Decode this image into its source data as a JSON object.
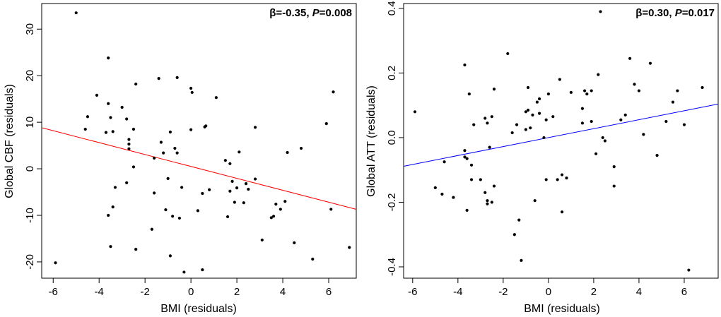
{
  "chart_data": [
    {
      "type": "scatter",
      "xlabel": "BMI (residuals)",
      "ylabel": "Global CBF (residuals)",
      "xlim": [
        -6.5,
        7.2
      ],
      "ylim": [
        -23.5,
        35.5
      ],
      "xticks": [
        "-6",
        "-4",
        "-2",
        "0",
        "2",
        "4",
        "6"
      ],
      "yticks": [
        "-20",
        "-10",
        "0",
        "10",
        "20",
        "30"
      ],
      "annotation": {
        "beta": "β=-0.35, ",
        "p_label": "P",
        "p_value": "=0.008"
      },
      "fit_line": {
        "slope": -1.28,
        "intercept": 0.5,
        "color": "#ff0000"
      },
      "points": [
        [
          -5.9,
          -20.2
        ],
        [
          -5.0,
          33.5
        ],
        [
          -4.6,
          8.5
        ],
        [
          -4.5,
          11.2
        ],
        [
          -4.1,
          15.8
        ],
        [
          -3.7,
          7.8
        ],
        [
          -3.6,
          14
        ],
        [
          -3.6,
          23.8
        ],
        [
          -3.6,
          -10
        ],
        [
          -3.5,
          11
        ],
        [
          -3.4,
          8
        ],
        [
          -3.5,
          -16.7
        ],
        [
          -3.4,
          -8.2
        ],
        [
          -3.3,
          -4
        ],
        [
          -3.0,
          13.2
        ],
        [
          -2.8,
          -3
        ],
        [
          -2.8,
          10.7
        ],
        [
          -2.7,
          6.3
        ],
        [
          -2.7,
          5.3
        ],
        [
          -2.7,
          4.3
        ],
        [
          -2.5,
          8.5
        ],
        [
          -2.5,
          0.4
        ],
        [
          -2.4,
          18.2
        ],
        [
          -2.4,
          -17.3
        ],
        [
          -1.7,
          -13
        ],
        [
          -1.6,
          2.3
        ],
        [
          -1.6,
          -5.2
        ],
        [
          -1.4,
          19.4
        ],
        [
          -1.3,
          5.7
        ],
        [
          -1.2,
          3.4
        ],
        [
          -1.1,
          -8.8
        ],
        [
          -1.0,
          -2.1
        ],
        [
          -0.9,
          7.9
        ],
        [
          -0.9,
          -18.7
        ],
        [
          -0.8,
          -10.2
        ],
        [
          -0.7,
          4.4
        ],
        [
          -0.6,
          19.6
        ],
        [
          -0.6,
          3.4
        ],
        [
          -0.5,
          -10.6
        ],
        [
          -0.4,
          -4
        ],
        [
          -0.3,
          -22.2
        ],
        [
          0.0,
          17.3
        ],
        [
          0.05,
          16.4
        ],
        [
          0.0,
          8.4
        ],
        [
          0.3,
          -9
        ],
        [
          0.5,
          -5.3
        ],
        [
          0.5,
          -21.7
        ],
        [
          0.6,
          9
        ],
        [
          0.65,
          9.2
        ],
        [
          0.8,
          -4.5
        ],
        [
          1.1,
          15.3
        ],
        [
          1.5,
          1.8
        ],
        [
          1.6,
          -10.3
        ],
        [
          1.7,
          -4.8
        ],
        [
          1.7,
          1.1
        ],
        [
          1.8,
          -2.7
        ],
        [
          1.9,
          -7.2
        ],
        [
          2.0,
          -4.1
        ],
        [
          2.1,
          3.6
        ],
        [
          2.3,
          -7.3
        ],
        [
          2.4,
          -3.2
        ],
        [
          2.5,
          -4.4
        ],
        [
          2.8,
          -2.2
        ],
        [
          2.8,
          8.9
        ],
        [
          3.1,
          -15.3
        ],
        [
          3.5,
          -10.5
        ],
        [
          3.6,
          -10.2
        ],
        [
          3.7,
          -7.6
        ],
        [
          3.9,
          -8.7
        ],
        [
          4.1,
          -7
        ],
        [
          4.2,
          3.5
        ],
        [
          4.5,
          -15.9
        ],
        [
          4.8,
          4.4
        ],
        [
          5.3,
          -19.4
        ],
        [
          5.9,
          9.7
        ],
        [
          6.1,
          -8.7
        ],
        [
          6.2,
          16.5
        ],
        [
          6.9,
          -16.9
        ]
      ]
    },
    {
      "type": "scatter",
      "xlabel": "BMI (residuals)",
      "ylabel": "Global ATT (residuals)",
      "xlim": [
        -6.4,
        7.5
      ],
      "ylim": [
        -0.435,
        0.415
      ],
      "xticks": [
        "-6",
        "-4",
        "-2",
        "0",
        "2",
        "4",
        "6"
      ],
      "yticks": [
        "-0.4",
        "-0.2",
        "0.0",
        "0.2",
        "0.4"
      ],
      "annotation": {
        "beta": "β=0.30, ",
        "p_label": "P",
        "p_value": "=0.017"
      },
      "fit_line": {
        "slope": 0.01385,
        "intercept": 0.0,
        "color": "#0000ff"
      },
      "points": [
        [
          -5.9,
          0.08
        ],
        [
          -5.0,
          -0.155
        ],
        [
          -4.7,
          -0.175
        ],
        [
          -4.6,
          -0.075
        ],
        [
          -4.2,
          -0.185
        ],
        [
          -3.7,
          -0.04
        ],
        [
          -3.7,
          -0.06
        ],
        [
          -3.7,
          0.225
        ],
        [
          -3.6,
          -0.225
        ],
        [
          -3.6,
          -0.065
        ],
        [
          -3.5,
          0.135
        ],
        [
          -3.4,
          -0.085
        ],
        [
          -3.4,
          -0.13
        ],
        [
          -3.3,
          0.04
        ],
        [
          -3.0,
          -0.13
        ],
        [
          -2.8,
          0.06
        ],
        [
          -2.8,
          -0.17
        ],
        [
          -2.7,
          0.045
        ],
        [
          -2.7,
          -0.195
        ],
        [
          -2.7,
          -0.205
        ],
        [
          -2.6,
          -0.03
        ],
        [
          -2.5,
          0.065
        ],
        [
          -2.4,
          -0.15
        ],
        [
          -2.4,
          0.15
        ],
        [
          -2.5,
          -0.2
        ],
        [
          -1.8,
          0.26
        ],
        [
          -1.6,
          0.015
        ],
        [
          -1.5,
          -0.3
        ],
        [
          -1.4,
          0.04
        ],
        [
          -1.3,
          -0.255
        ],
        [
          -1.2,
          -0.38
        ],
        [
          -1.0,
          0.025
        ],
        [
          -1.0,
          0.08
        ],
        [
          -0.9,
          0.085
        ],
        [
          -0.9,
          0.155
        ],
        [
          -0.8,
          0.03
        ],
        [
          -0.7,
          0.07
        ],
        [
          -0.6,
          -0.195
        ],
        [
          -0.5,
          0.11
        ],
        [
          -0.4,
          0.075
        ],
        [
          -0.4,
          0.12
        ],
        [
          -0.2,
          0.0
        ],
        [
          -0.1,
          -0.13
        ],
        [
          -0.1,
          0.055
        ],
        [
          0.0,
          0.135
        ],
        [
          0.2,
          0.065
        ],
        [
          0.4,
          -0.13
        ],
        [
          0.5,
          0.18
        ],
        [
          0.6,
          -0.23
        ],
        [
          0.6,
          -0.115
        ],
        [
          0.8,
          -0.125
        ],
        [
          1.0,
          0.14
        ],
        [
          1.5,
          0.045
        ],
        [
          1.5,
          0.09
        ],
        [
          1.6,
          0.145
        ],
        [
          1.7,
          0.135
        ],
        [
          1.9,
          0.145
        ],
        [
          1.9,
          0.05
        ],
        [
          2.1,
          -0.05
        ],
        [
          2.2,
          0.195
        ],
        [
          2.3,
          0.39
        ],
        [
          2.4,
          0.0
        ],
        [
          2.5,
          -0.01
        ],
        [
          2.9,
          -0.15
        ],
        [
          2.9,
          -0.09
        ],
        [
          3.2,
          0.055
        ],
        [
          3.4,
          0.07
        ],
        [
          3.6,
          0.245
        ],
        [
          3.8,
          0.165
        ],
        [
          4.0,
          0.145
        ],
        [
          4.2,
          0.01
        ],
        [
          4.5,
          0.23
        ],
        [
          4.8,
          -0.055
        ],
        [
          5.2,
          0.05
        ],
        [
          5.5,
          0.11
        ],
        [
          5.7,
          0.145
        ],
        [
          6.0,
          0.04
        ],
        [
          6.2,
          -0.41
        ],
        [
          6.8,
          0.155
        ]
      ]
    }
  ]
}
